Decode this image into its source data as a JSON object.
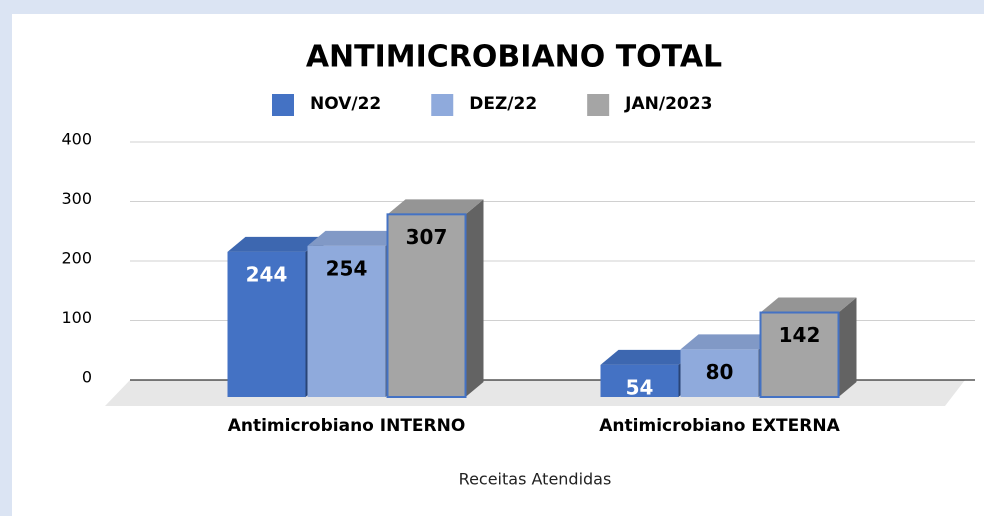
{
  "chart_data": {
    "type": "bar",
    "title": "ANTIMICROBIANO TOTAL",
    "categories": [
      "Antimicrobiano INTERNO",
      "Antimicrobiano EXTERNA"
    ],
    "series": [
      {
        "name": "NOV/22",
        "color": "#4472c4",
        "values": [
          244,
          54
        ]
      },
      {
        "name": "DEZ/22",
        "color": "#8faadc",
        "values": [
          254,
          80
        ]
      },
      {
        "name": "JAN/2023",
        "color": "#a5a5a5",
        "values": [
          307,
          142
        ]
      }
    ],
    "ylim": [
      0,
      400
    ],
    "yticks": [
      0,
      100,
      200,
      300,
      400
    ],
    "grid": true,
    "x_axis_label": "Receitas Atendidas",
    "legend": "top"
  }
}
